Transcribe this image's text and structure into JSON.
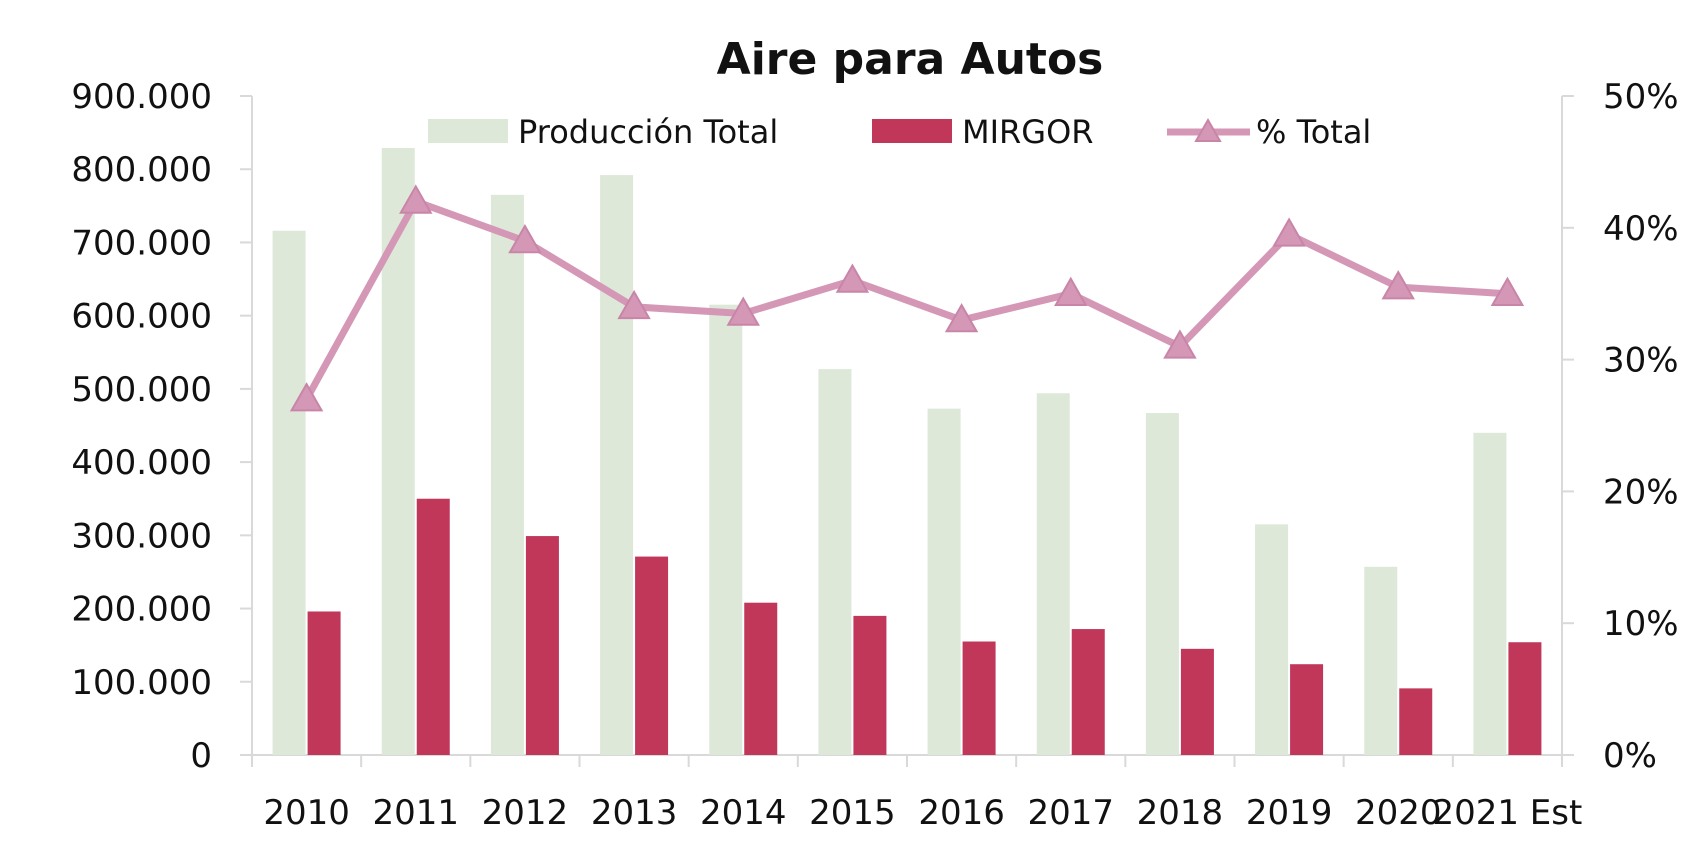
{
  "chart_data": {
    "type": "bar",
    "title": "Aire para Autos",
    "categories": [
      "2010",
      "2011",
      "2012",
      "2013",
      "2014",
      "2015",
      "2016",
      "2017",
      "2018",
      "2019",
      "2020",
      "2021 Est"
    ],
    "series": [
      {
        "name": "Producción Total",
        "type": "bar",
        "axis": "left",
        "color": "#dde8d9",
        "values": [
          716000,
          829000,
          765000,
          792000,
          615000,
          527000,
          473000,
          494000,
          467000,
          315000,
          257000,
          440000
        ]
      },
      {
        "name": "MIRGOR",
        "type": "bar",
        "axis": "left",
        "color": "#c0375a",
        "values": [
          196000,
          350000,
          299000,
          271000,
          208000,
          190000,
          155000,
          172000,
          145000,
          124000,
          91000,
          154000
        ]
      },
      {
        "name": "% Total",
        "type": "line",
        "axis": "right",
        "color": "#d497b6",
        "marker": "triangle",
        "values": [
          0.27,
          0.42,
          0.39,
          0.34,
          0.335,
          0.36,
          0.33,
          0.35,
          0.31,
          0.395,
          0.355,
          0.35
        ]
      }
    ],
    "y_left": {
      "ylim": [
        0,
        900000
      ],
      "ticks": [
        0,
        100000,
        200000,
        300000,
        400000,
        500000,
        600000,
        700000,
        800000,
        900000
      ],
      "tick_labels": [
        "0",
        "100.000",
        "200.000",
        "300.000",
        "400.000",
        "500.000",
        "600.000",
        "700.000",
        "800.000",
        "900.000"
      ]
    },
    "y_right": {
      "ylim": [
        0,
        0.5
      ],
      "ticks": [
        0,
        0.1,
        0.2,
        0.3,
        0.4,
        0.5
      ],
      "tick_labels": [
        "0%",
        "10%",
        "20%",
        "30%",
        "40%",
        "50%"
      ]
    },
    "legend": {
      "placement": "top-center",
      "entries": [
        "Producción Total",
        "MIRGOR",
        "% Total"
      ]
    },
    "grid": false
  }
}
